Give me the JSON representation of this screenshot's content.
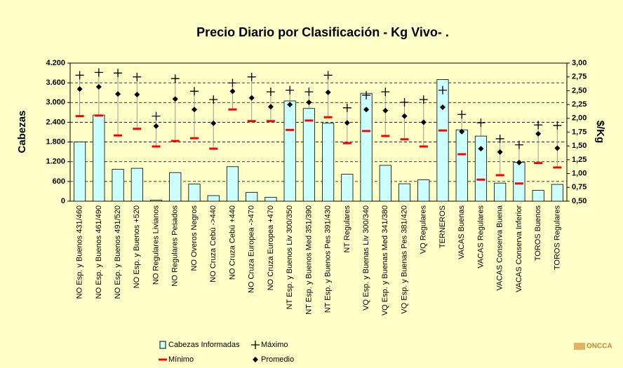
{
  "chart_data": {
    "type": "bar",
    "title": "Precio Diario por Clasificación - Kg Vivo- .",
    "y_label": "Cabezas",
    "y2_label": "$/Kg",
    "logo": "ONCCA",
    "categories": [
      "NO Esp. y Buenos 431/460",
      "NO Esp. y Buenos 461/490",
      "NO Esp. y Buenos 491/520",
      "NO Esp. y Buenos  +520",
      "NO Regulares Livianos",
      "NO Regulares Pesados",
      "NO Overos Negros",
      "NO Cruza Cebú ->440",
      "NO Cruza Cebú +440",
      "NO Cruza Europea ->470",
      "NO Cruza Europea +470",
      "NT Esp. y Buenos Liv 300/350",
      "NT Esp. y Buenos Med 351/390",
      "NT Esp. y Buenos Pes 391/430",
      "NT Regulares",
      "VQ Esp. y Buenas Liv 300/340",
      "VQ Esp. y Buenas Med 341/380",
      "VQ Esp. y Buenas Pes 381/420",
      "VQ Regulares",
      "TERNEROS",
      "VACAS Buenas",
      "VACAS Regulares",
      "VACAS Conserva Buena",
      "VACAS Conserva Inferior",
      "TOROS Buenos",
      "TOROS Regulares"
    ],
    "series": [
      {
        "name": "Cabezas Informadas",
        "mark": "bar",
        "color": "#ccffff",
        "values": [
          1800,
          2620,
          970,
          1000,
          30,
          870,
          520,
          170,
          1050,
          270,
          120,
          3050,
          2820,
          2370,
          820,
          3280,
          1090,
          530,
          650,
          3700,
          2170,
          1980,
          550,
          1180,
          330,
          510
        ]
      },
      {
        "name": "Máximo",
        "mark": "plus",
        "color": "#000000",
        "axis": "y2",
        "values": [
          2.78,
          2.83,
          2.82,
          2.75,
          2.04,
          2.72,
          2.49,
          2.34,
          2.64,
          2.75,
          2.48,
          2.51,
          2.48,
          2.78,
          2.19,
          2.42,
          2.48,
          2.29,
          2.34,
          2.51,
          2.07,
          1.92,
          1.63,
          1.52,
          1.88,
          1.87
        ]
      },
      {
        "name": "Mínimo",
        "mark": "dash",
        "color": "#ff0000",
        "axis": "y2",
        "values": [
          2.04,
          2.05,
          1.69,
          1.81,
          1.49,
          1.59,
          1.64,
          1.45,
          2.16,
          1.95,
          1.95,
          1.79,
          1.96,
          2.02,
          1.55,
          1.77,
          1.68,
          1.62,
          1.49,
          1.78,
          1.35,
          0.89,
          0.97,
          0.82,
          1.19,
          1.11
        ]
      },
      {
        "name": "Promedio",
        "mark": "diamond",
        "color": "#000000",
        "axis": "y2",
        "values": [
          2.53,
          2.57,
          2.44,
          2.43,
          1.86,
          2.35,
          2.16,
          1.91,
          2.49,
          2.37,
          2.21,
          2.25,
          2.29,
          2.47,
          1.92,
          2.16,
          2.14,
          2.04,
          1.93,
          2.2,
          1.76,
          1.45,
          1.39,
          1.2,
          1.72,
          1.46
        ]
      }
    ],
    "ylim": [
      0,
      4200
    ],
    "yticks": [
      0,
      600,
      {
        "value": 1200,
        "label": "1.200"
      },
      {
        "value": 1800,
        "label": "1.800"
      },
      {
        "value": 2400,
        "label": "2.400"
      },
      {
        "value": 3000,
        "label": "3.000"
      },
      {
        "value": 3600,
        "label": "3.600"
      },
      {
        "value": 4200,
        "label": "4.200"
      }
    ],
    "y2lim": [
      0.5,
      3
    ],
    "y2ticks": [
      {
        "value": 0.5,
        "label": "0,50"
      },
      {
        "value": 0.75,
        "label": "0,75"
      },
      {
        "value": 1,
        "label": "1,00"
      },
      {
        "value": 1.25,
        "label": "1,25"
      },
      {
        "value": 1.5,
        "label": "1,50"
      },
      {
        "value": 1.75,
        "label": "1,75"
      },
      {
        "value": 2,
        "label": "2,00"
      },
      {
        "value": 2.25,
        "label": "2,25"
      },
      {
        "value": 2.5,
        "label": "2,50"
      },
      {
        "value": 2.75,
        "label": "2,75"
      },
      {
        "value": 3,
        "label": "3,00"
      }
    ],
    "grid": true,
    "range_line_color": "#999999",
    "legend": "bottom"
  }
}
